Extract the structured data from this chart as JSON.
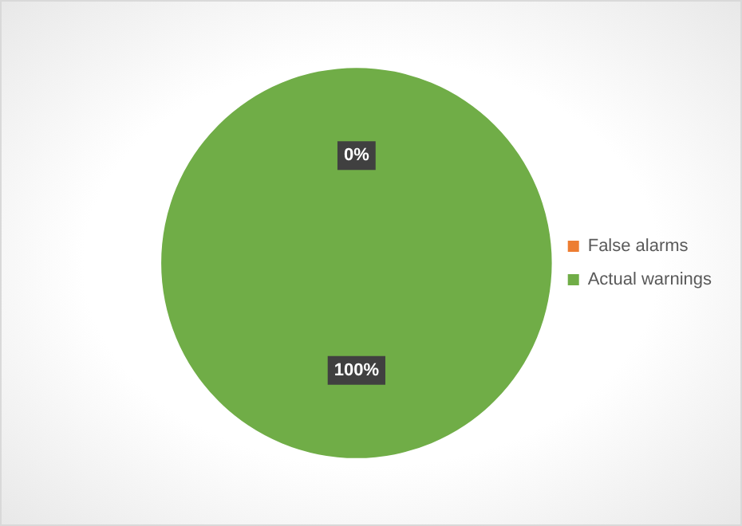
{
  "chart_data": {
    "type": "pie",
    "categories": [
      "False alarms",
      "Actual warnings"
    ],
    "values": [
      0,
      100
    ],
    "colors": [
      "#ed7d31",
      "#70ad47"
    ],
    "value_labels": [
      "0%",
      "100%"
    ],
    "legend": "right"
  }
}
